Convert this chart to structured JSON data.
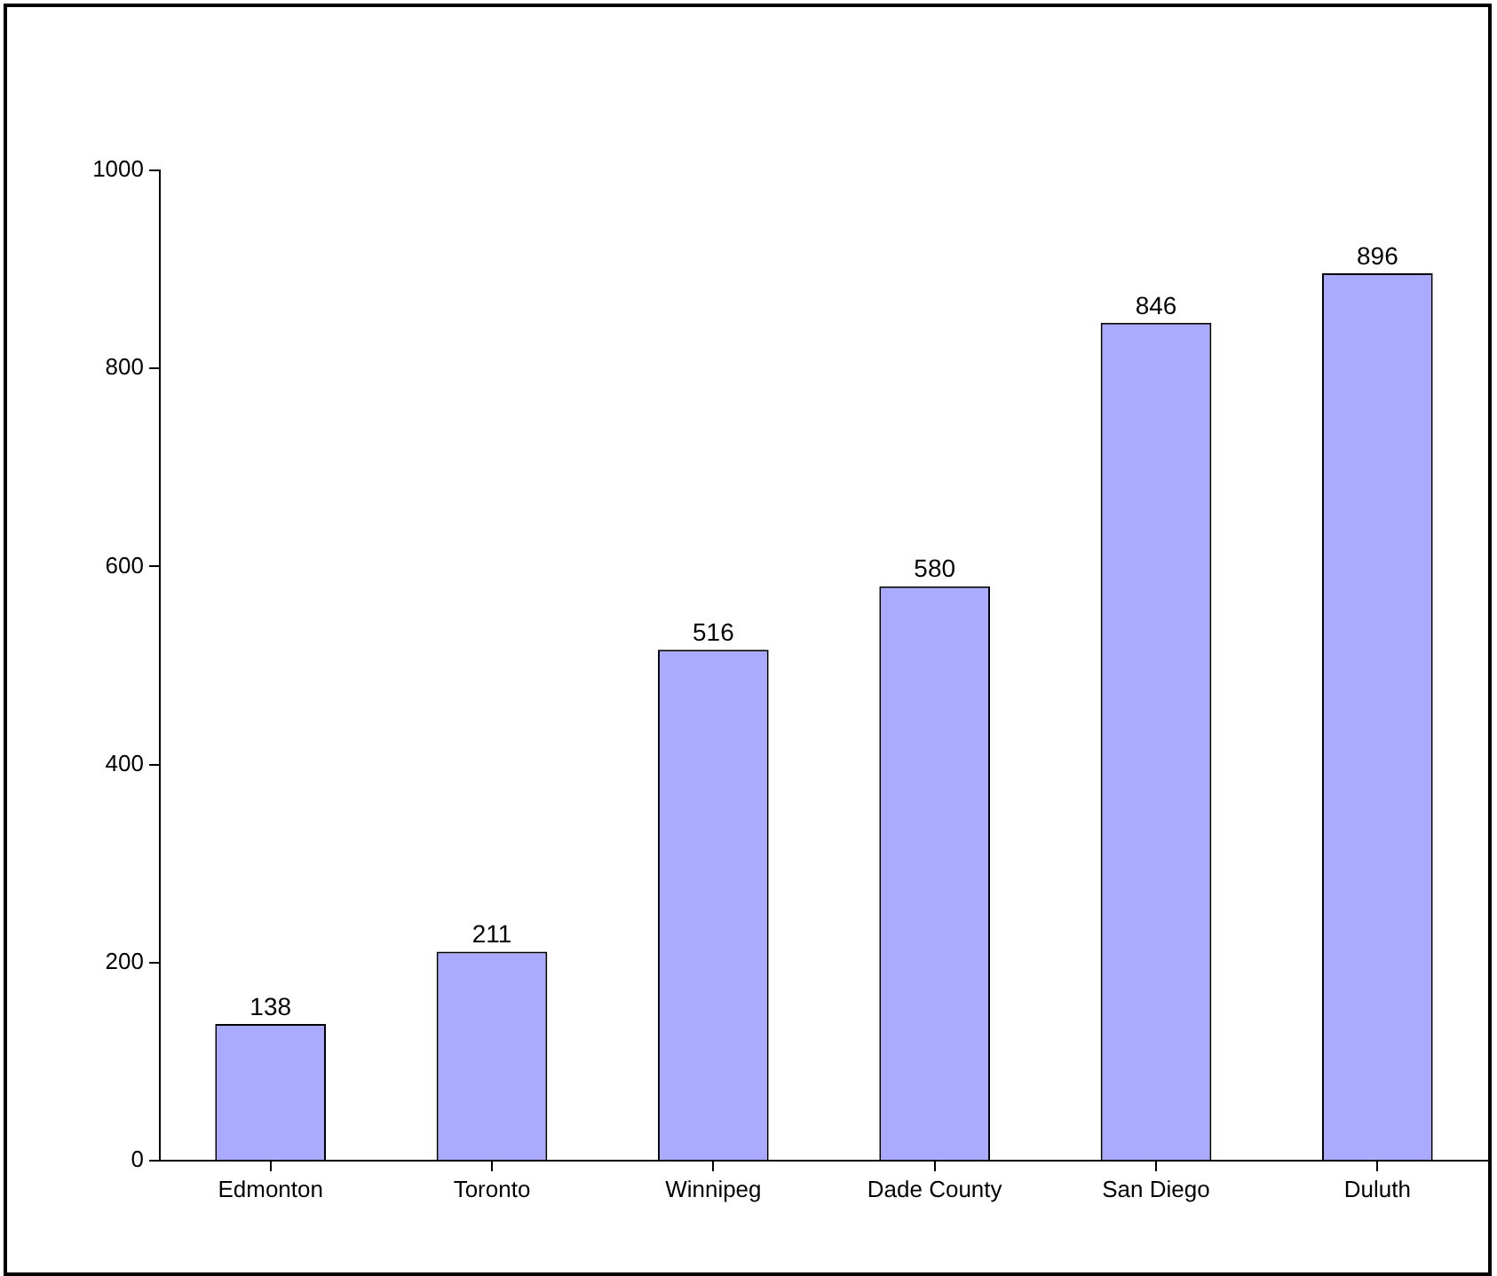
{
  "chart_data": {
    "type": "bar",
    "categories": [
      "Edmonton",
      "Toronto",
      "Winnipeg",
      "Dade County",
      "San Diego",
      "Duluth"
    ],
    "values": [
      138,
      211,
      516,
      580,
      846,
      896
    ],
    "color": "#aaaaff",
    "ylim": [
      0,
      1000
    ],
    "yticks": [
      0,
      200,
      400,
      600,
      800,
      1000
    ],
    "grid": false,
    "data_labels": true
  }
}
